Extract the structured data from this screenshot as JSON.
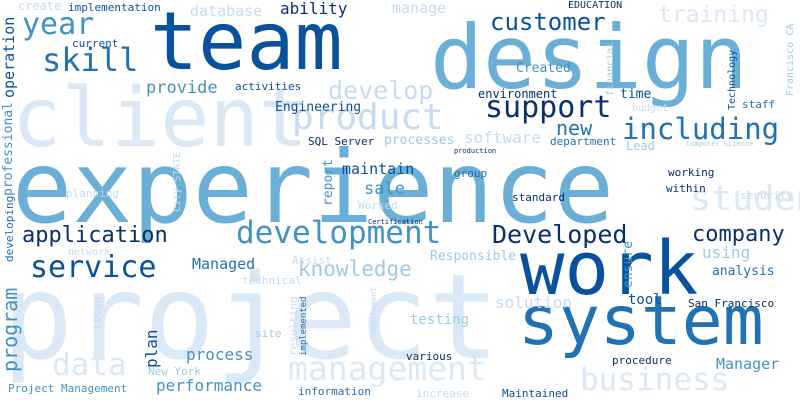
{
  "palette": {
    "faint": "#dbe8f5",
    "pale": "#c6dbef",
    "light": "#9ecae1",
    "mid": "#6baed6",
    "medium": "#4292c6",
    "strong": "#2171b5",
    "deep": "#08519c",
    "darkest": "#08306b"
  },
  "words": {
    "experience": "experience",
    "project": "project",
    "team": "team",
    "design": "design",
    "client": "client",
    "work": "work",
    "system": "system",
    "management": "management",
    "business": "business",
    "development": "development",
    "product": "product",
    "support": "support",
    "including": "including",
    "customer": "customer",
    "skill": "skill",
    "year": "year",
    "develop": "develop",
    "service": "service",
    "application": "application",
    "developed": "Developed",
    "company": "company",
    "data": "data",
    "training": "training",
    "student": "student",
    "knowledge": "knowledge",
    "program": "program",
    "operation": "operation",
    "professional": "professional",
    "new": "new",
    "plan": "plan",
    "process": "process",
    "performance": "performance",
    "solution": "solution",
    "report": "report",
    "software": "software",
    "sale": "sale",
    "maintain": "maintain",
    "tool": "tool",
    "using": "using",
    "ensure": "ensure",
    "manager": "Manager",
    "analysis": "analysis",
    "testing": "testing",
    "managed": "Managed",
    "responsible": "Responsible",
    "provide": "provide",
    "environment": "environment",
    "created": "Created",
    "time": "time",
    "engineering": "Engineering",
    "sql_server": "SQL Server",
    "processes": "processes",
    "department": "department",
    "lead": "Lead",
    "group": "group",
    "working": "working",
    "within": "within",
    "standard": "standard",
    "worked": "Worked",
    "database": "database",
    "ability": "ability",
    "manage": "manage",
    "implementation": "implementation",
    "create": "create",
    "current": "current",
    "activities": "activities",
    "education": "EDUCATION",
    "financial": "financial",
    "technology": "Technology",
    "staff": "staff",
    "francisco_ca": "Francisco CA",
    "budget": "budget",
    "computer_science": "Computer Science",
    "production": "production",
    "security": "security",
    "planning": "planning",
    "developing": "developing",
    "city_state": "City STATE",
    "network": "network",
    "issue": "issue",
    "certification": "Certification",
    "technical": "technical",
    "assist": "Assist",
    "resulting": "resulting",
    "implemented": "implemented",
    "requirement": "requirement",
    "site": "site",
    "new_york": "New York",
    "san_francisco": "San Francisco",
    "procedure": "procedure",
    "various": "various",
    "project_management": "Project Management",
    "information": "information",
    "increase": "increase",
    "maintained": "Maintained"
  }
}
